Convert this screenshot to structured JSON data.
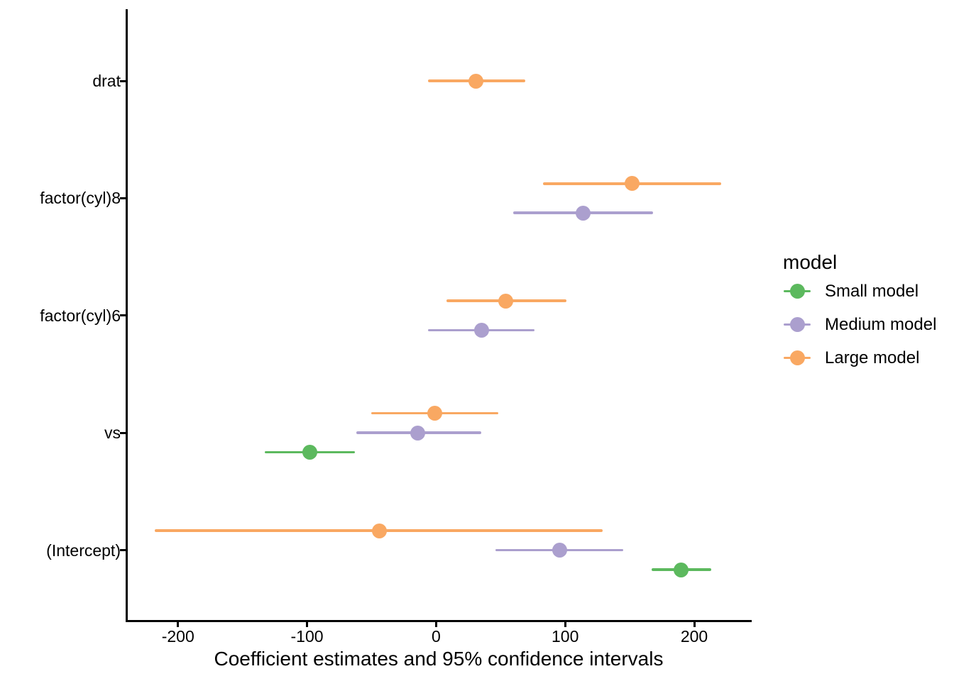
{
  "figure": {
    "background": "#ffffff",
    "text_color": "#000000"
  },
  "chart_data": {
    "type": "scatter",
    "subtype": "dot-and-whisker coefficient plot with 95% CI error bars",
    "title": "",
    "xlabel": "Coefficient estimates and 95% confidence intervals",
    "ylabel": "",
    "legend_title": "model",
    "legend_position": "right",
    "grid": false,
    "categories": [
      "drat",
      "factor(cyl)8",
      "factor(cyl)6",
      "vs",
      "(Intercept)"
    ],
    "x_ticks": [
      -200,
      -100,
      0,
      100,
      200
    ],
    "x_tick_labels": [
      "-200",
      "-100",
      "0",
      "100",
      "200"
    ],
    "xlim": [
      -240,
      244
    ],
    "series": [
      {
        "name": "Small model",
        "color": "#5cb95e",
        "points": [
          {
            "term": "vs",
            "estimate": -98,
            "ci_low": -133,
            "ci_high": -63
          },
          {
            "term": "(Intercept)",
            "estimate": 190,
            "ci_low": 167,
            "ci_high": 213
          }
        ]
      },
      {
        "name": "Medium model",
        "color": "#ab9fce",
        "points": [
          {
            "term": "factor(cyl)8",
            "estimate": 114,
            "ci_low": 60,
            "ci_high": 168
          },
          {
            "term": "factor(cyl)6",
            "estimate": 35,
            "ci_low": -6,
            "ci_high": 76
          },
          {
            "term": "vs",
            "estimate": -14,
            "ci_low": -62,
            "ci_high": 35
          },
          {
            "term": "(Intercept)",
            "estimate": 96,
            "ci_low": 46,
            "ci_high": 145
          }
        ]
      },
      {
        "name": "Large model",
        "color": "#f9a862",
        "points": [
          {
            "term": "drat",
            "estimate": 31,
            "ci_low": -6,
            "ci_high": 69
          },
          {
            "term": "factor(cyl)8",
            "estimate": 152,
            "ci_low": 83,
            "ci_high": 221
          },
          {
            "term": "factor(cyl)6",
            "estimate": 54,
            "ci_low": 8,
            "ci_high": 101
          },
          {
            "term": "vs",
            "estimate": -1,
            "ci_low": -50,
            "ci_high": 48
          },
          {
            "term": "(Intercept)",
            "estimate": -44,
            "ci_low": -218,
            "ci_high": 129
          }
        ]
      }
    ]
  }
}
